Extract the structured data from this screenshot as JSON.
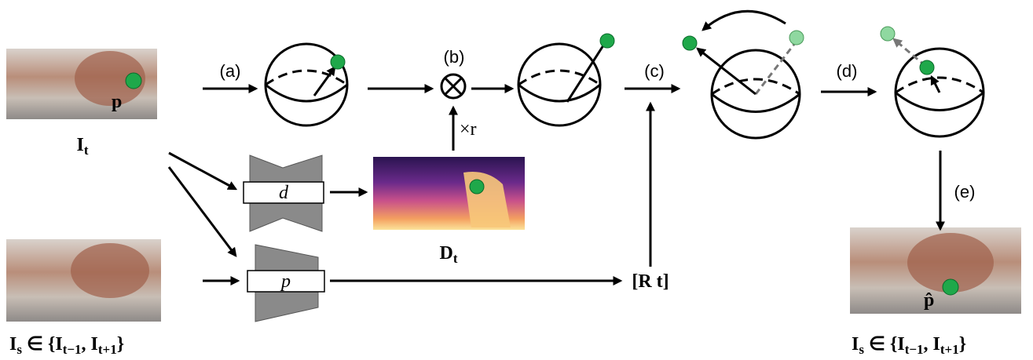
{
  "steps": [
    "(a)",
    "(b)",
    "(c)",
    "(d)",
    "(e)"
  ],
  "target_image": {
    "point": "p",
    "label": [
      {
        "text": "I"
      },
      {
        "sub": "t"
      }
    ]
  },
  "depth": {
    "net": "d",
    "scale": "×r",
    "label": [
      {
        "text": "D"
      },
      {
        "sub": "t"
      }
    ]
  },
  "pose": {
    "net": "p",
    "output": "[R t]"
  },
  "source_image": {
    "point": "p̂",
    "label": [
      {
        "text": "I"
      },
      {
        "sub": "s"
      },
      {
        "text": " ∈ {"
      },
      {
        "text": "I"
      },
      {
        "sub": "t−1"
      },
      {
        "text": ", "
      },
      {
        "text": "I"
      },
      {
        "sub": "t+1"
      },
      {
        "text": "}"
      }
    ]
  }
}
